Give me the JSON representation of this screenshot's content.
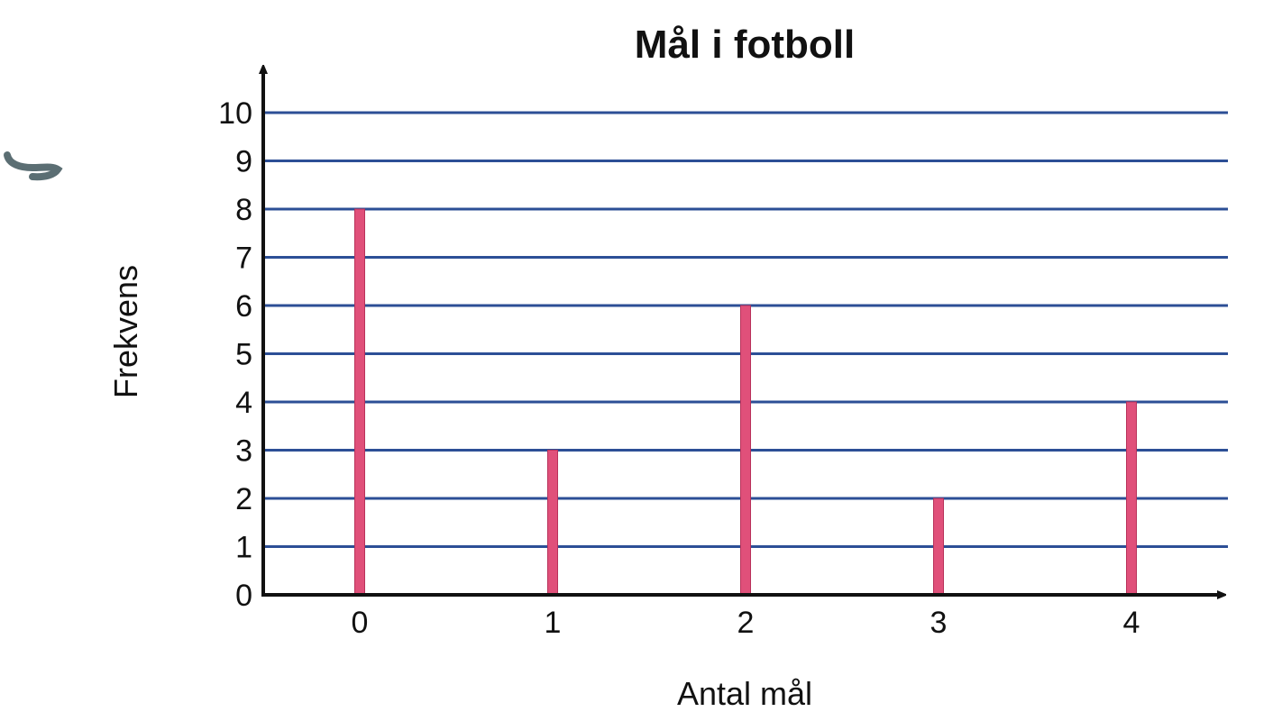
{
  "chart_data": {
    "type": "bar",
    "title": "Mål i fotboll",
    "xlabel": "Antal mål",
    "ylabel": "Frekvens",
    "categories": [
      "0",
      "1",
      "2",
      "3",
      "4"
    ],
    "values": [
      8,
      3,
      6,
      2,
      4
    ],
    "ylim": [
      0,
      10
    ],
    "yticks": [
      "0",
      "1",
      "2",
      "3",
      "4",
      "5",
      "6",
      "7",
      "8",
      "9",
      "10"
    ],
    "grid": true,
    "colors": {
      "bar": "#e0507a",
      "grid": "#2c4f96",
      "axis": "#111111"
    }
  }
}
